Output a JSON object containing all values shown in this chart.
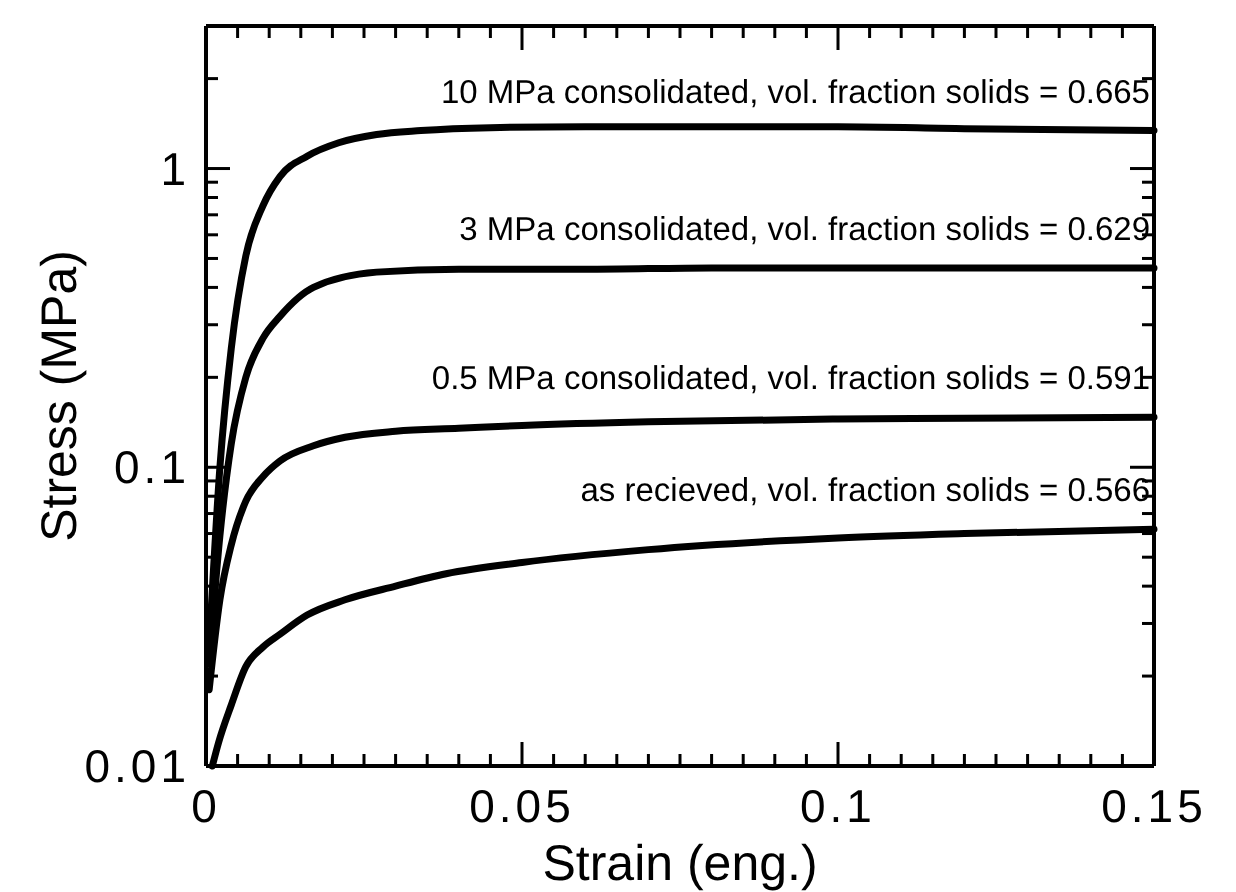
{
  "chart_data": {
    "type": "line",
    "xlabel": "Strain  (eng.)",
    "ylabel": "Stress  (MPa)",
    "log": "y",
    "marker": "none",
    "line_style": "solid",
    "grid": false,
    "legend": "right",
    "xlim": [
      0,
      0.15
    ],
    "ylim": [
      0.01,
      3
    ],
    "xticks": [
      0,
      {
        "value": 0.005,
        "label": null
      },
      {
        "value": 0.01,
        "label": null
      },
      {
        "value": 0.015,
        "label": null
      },
      {
        "value": 0.02,
        "label": null
      },
      {
        "value": 0.025,
        "label": null
      },
      {
        "value": 0.03,
        "label": null
      },
      {
        "value": 0.035,
        "label": null
      },
      {
        "value": 0.04,
        "label": null
      },
      {
        "value": 0.045,
        "label": null
      },
      0.05,
      {
        "value": 0.055,
        "label": null
      },
      {
        "value": 0.06,
        "label": null
      },
      {
        "value": 0.065,
        "label": null
      },
      {
        "value": 0.07,
        "label": null
      },
      {
        "value": 0.075,
        "label": null
      },
      {
        "value": 0.08,
        "label": null
      },
      {
        "value": 0.085,
        "label": null
      },
      {
        "value": 0.09,
        "label": null
      },
      {
        "value": 0.095,
        "label": null
      },
      0.1,
      {
        "value": 0.105,
        "label": null
      },
      {
        "value": 0.11,
        "label": null
      },
      {
        "value": 0.115,
        "label": null
      },
      {
        "value": 0.12,
        "label": null
      },
      {
        "value": 0.125,
        "label": null
      },
      {
        "value": 0.13,
        "label": null
      },
      {
        "value": 0.135,
        "label": null
      },
      {
        "value": 0.14,
        "label": null
      },
      {
        "value": 0.145,
        "label": null
      },
      0.15
    ],
    "yticks": [
      0.01,
      {
        "value": 0.02,
        "label": null
      },
      {
        "value": 0.03,
        "label": null
      },
      {
        "value": 0.04,
        "label": null
      },
      {
        "value": 0.05,
        "label": null
      },
      {
        "value": 0.06,
        "label": null
      },
      {
        "value": 0.07,
        "label": null
      },
      {
        "value": 0.08,
        "label": null
      },
      {
        "value": 0.09,
        "label": null
      },
      0.1,
      {
        "value": 0.2,
        "label": null
      },
      {
        "value": 0.3,
        "label": null
      },
      {
        "value": 0.4,
        "label": null
      },
      {
        "value": 0.5,
        "label": null
      },
      {
        "value": 0.6,
        "label": null
      },
      {
        "value": 0.7,
        "label": null
      },
      {
        "value": 0.8,
        "label": null
      },
      {
        "value": 0.9,
        "label": null
      },
      1,
      {
        "value": 2,
        "label": null
      },
      {
        "value": 3,
        "label": null
      }
    ],
    "series": [
      {
        "name": "10 MPa consolidated, vol. fraction solids = 0.665",
        "color": "#000000",
        "x": [
          0.0005,
          0.0022,
          0.004,
          0.0063,
          0.009,
          0.0117,
          0.016,
          0.021,
          0.027,
          0.034,
          0.045,
          0.06,
          0.08,
          0.1,
          0.12,
          0.15
        ],
        "values": [
          0.025,
          0.1,
          0.25,
          0.51,
          0.75,
          0.94,
          1.1,
          1.22,
          1.3,
          1.34,
          1.37,
          1.38,
          1.38,
          1.38,
          1.36,
          1.34
        ]
      },
      {
        "name": "3 MPa consolidated, vol. fraction solids = 0.629",
        "color": "#000000",
        "x": [
          0.0005,
          0.0022,
          0.004,
          0.0063,
          0.009,
          0.0117,
          0.017,
          0.027,
          0.04,
          0.06,
          0.08,
          0.1,
          0.12,
          0.15
        ],
        "values": [
          0.022,
          0.059,
          0.12,
          0.2,
          0.27,
          0.32,
          0.4,
          0.45,
          0.46,
          0.46,
          0.465,
          0.465,
          0.465,
          0.465
        ]
      },
      {
        "name": "0.5 MPa consolidated, vol. fraction solids = 0.591",
        "color": "#000000",
        "x": [
          0.0005,
          0.0022,
          0.004,
          0.0063,
          0.009,
          0.0117,
          0.017,
          0.022,
          0.03,
          0.04,
          0.05,
          0.07,
          0.1,
          0.12,
          0.15
        ],
        "values": [
          0.018,
          0.036,
          0.055,
          0.077,
          0.093,
          0.105,
          0.118,
          0.126,
          0.132,
          0.135,
          0.138,
          0.142,
          0.145,
          0.146,
          0.147
        ]
      },
      {
        "name": "as recieved, vol. fraction solids = 0.566",
        "color": "#000000",
        "x": [
          0.001,
          0.002,
          0.004,
          0.0063,
          0.009,
          0.0117,
          0.016,
          0.022,
          0.03,
          0.038,
          0.05,
          0.07,
          0.1,
          0.12,
          0.15
        ],
        "values": [
          0.01,
          0.012,
          0.016,
          0.0215,
          0.025,
          0.0276,
          0.032,
          0.036,
          0.04,
          0.044,
          0.048,
          0.053,
          0.058,
          0.06,
          0.062
        ]
      }
    ]
  }
}
